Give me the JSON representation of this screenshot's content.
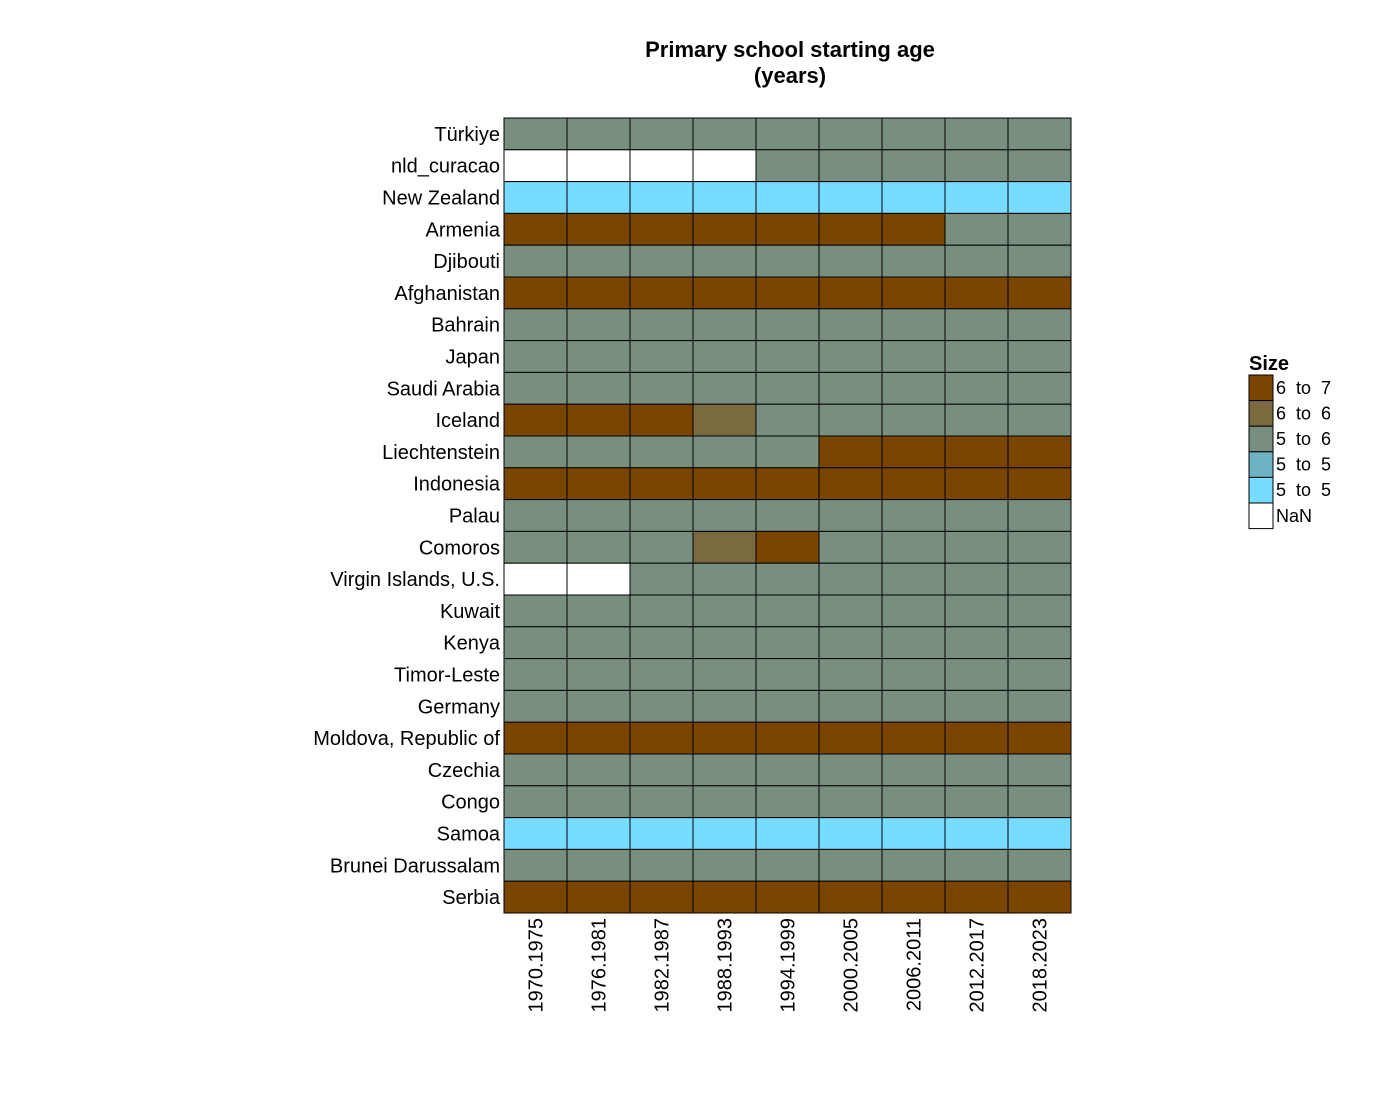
{
  "chart_data": {
    "type": "heatmap",
    "title": [
      "Primary school starting age",
      "(years)"
    ],
    "x_categories": [
      "1970.1975",
      "1976.1981",
      "1982.1987",
      "1988.1993",
      "1994.1999",
      "2000.2005",
      "2006.2011",
      "2012.2017",
      "2018.2023"
    ],
    "y_categories": [
      "Türkiye",
      "nld_curacao",
      "New Zealand",
      "Armenia",
      "Djibouti",
      "Afghanistan",
      "Bahrain",
      "Japan",
      "Saudi Arabia",
      "Iceland",
      "Liechtenstein",
      "Indonesia",
      "Palau",
      "Comoros",
      "Virgin Islands, U.S.",
      "Kuwait",
      "Kenya",
      "Timor-Leste",
      "Germany",
      "Moldova, Republic of",
      "Czechia",
      "Congo",
      "Samoa",
      "Brunei Darussalam",
      "Serbia"
    ],
    "values": [
      [
        6,
        6,
        6,
        6,
        6,
        6,
        6,
        6,
        6
      ],
      [
        null,
        null,
        null,
        null,
        6,
        6,
        6,
        6,
        6
      ],
      [
        5,
        5,
        5,
        5,
        5,
        5,
        5,
        5,
        5
      ],
      [
        7,
        7,
        7,
        7,
        7,
        7,
        7,
        6,
        6
      ],
      [
        6,
        6,
        6,
        6,
        6,
        6,
        6,
        6,
        6
      ],
      [
        7,
        7,
        7,
        7,
        7,
        7,
        7,
        7,
        7
      ],
      [
        6,
        6,
        6,
        6,
        6,
        6,
        6,
        6,
        6
      ],
      [
        6,
        6,
        6,
        6,
        6,
        6,
        6,
        6,
        6
      ],
      [
        6,
        6,
        6,
        6,
        6,
        6,
        6,
        6,
        6
      ],
      [
        7,
        7,
        7,
        6.5,
        6,
        6,
        6,
        6,
        6
      ],
      [
        6,
        6,
        6,
        6,
        6,
        7,
        7,
        7,
        7
      ],
      [
        7,
        7,
        7,
        7,
        7,
        7,
        7,
        7,
        7
      ],
      [
        6,
        6,
        6,
        6,
        6,
        6,
        6,
        6,
        6
      ],
      [
        6,
        6,
        6,
        6.5,
        7,
        6,
        6,
        6,
        6
      ],
      [
        null,
        null,
        6,
        6,
        6,
        6,
        6,
        6,
        6
      ],
      [
        6,
        6,
        6,
        6,
        6,
        6,
        6,
        6,
        6
      ],
      [
        6,
        6,
        6,
        6,
        6,
        6,
        6,
        6,
        6
      ],
      [
        6,
        6,
        6,
        6,
        6,
        6,
        6,
        6,
        6
      ],
      [
        6,
        6,
        6,
        6,
        6,
        6,
        6,
        6,
        6
      ],
      [
        7,
        7,
        7,
        7,
        7,
        7,
        7,
        7,
        7
      ],
      [
        6,
        6,
        6,
        6,
        6,
        6,
        6,
        6,
        6
      ],
      [
        6,
        6,
        6,
        6,
        6,
        6,
        6,
        6,
        6
      ],
      [
        5,
        5,
        5,
        5,
        5,
        5,
        5,
        5,
        5
      ],
      [
        6,
        6,
        6,
        6,
        6,
        6,
        6,
        6,
        6
      ],
      [
        7,
        7,
        7,
        7,
        7,
        7,
        7,
        7,
        7
      ]
    ],
    "legend": {
      "title": "Size",
      "placement": "right",
      "bins": [
        {
          "label": "6  to  7",
          "min": 6.67,
          "max": 7.01,
          "color": "#7a4500"
        },
        {
          "label": "6  to  6",
          "min": 6.34,
          "max": 6.67,
          "color": "#7b6a40"
        },
        {
          "label": "5  to  6",
          "min": 5.67,
          "max": 6.34,
          "color": "#788f7f"
        },
        {
          "label": "5  to  5",
          "min": 5.34,
          "max": 5.67,
          "color": "#6fb2c3"
        },
        {
          "label": "5  to  5",
          "min": 4.99,
          "max": 5.34,
          "color": "#77dcff"
        },
        {
          "label": "NaN",
          "min": null,
          "max": null,
          "color": "#ffffff"
        }
      ]
    },
    "grid": true
  }
}
